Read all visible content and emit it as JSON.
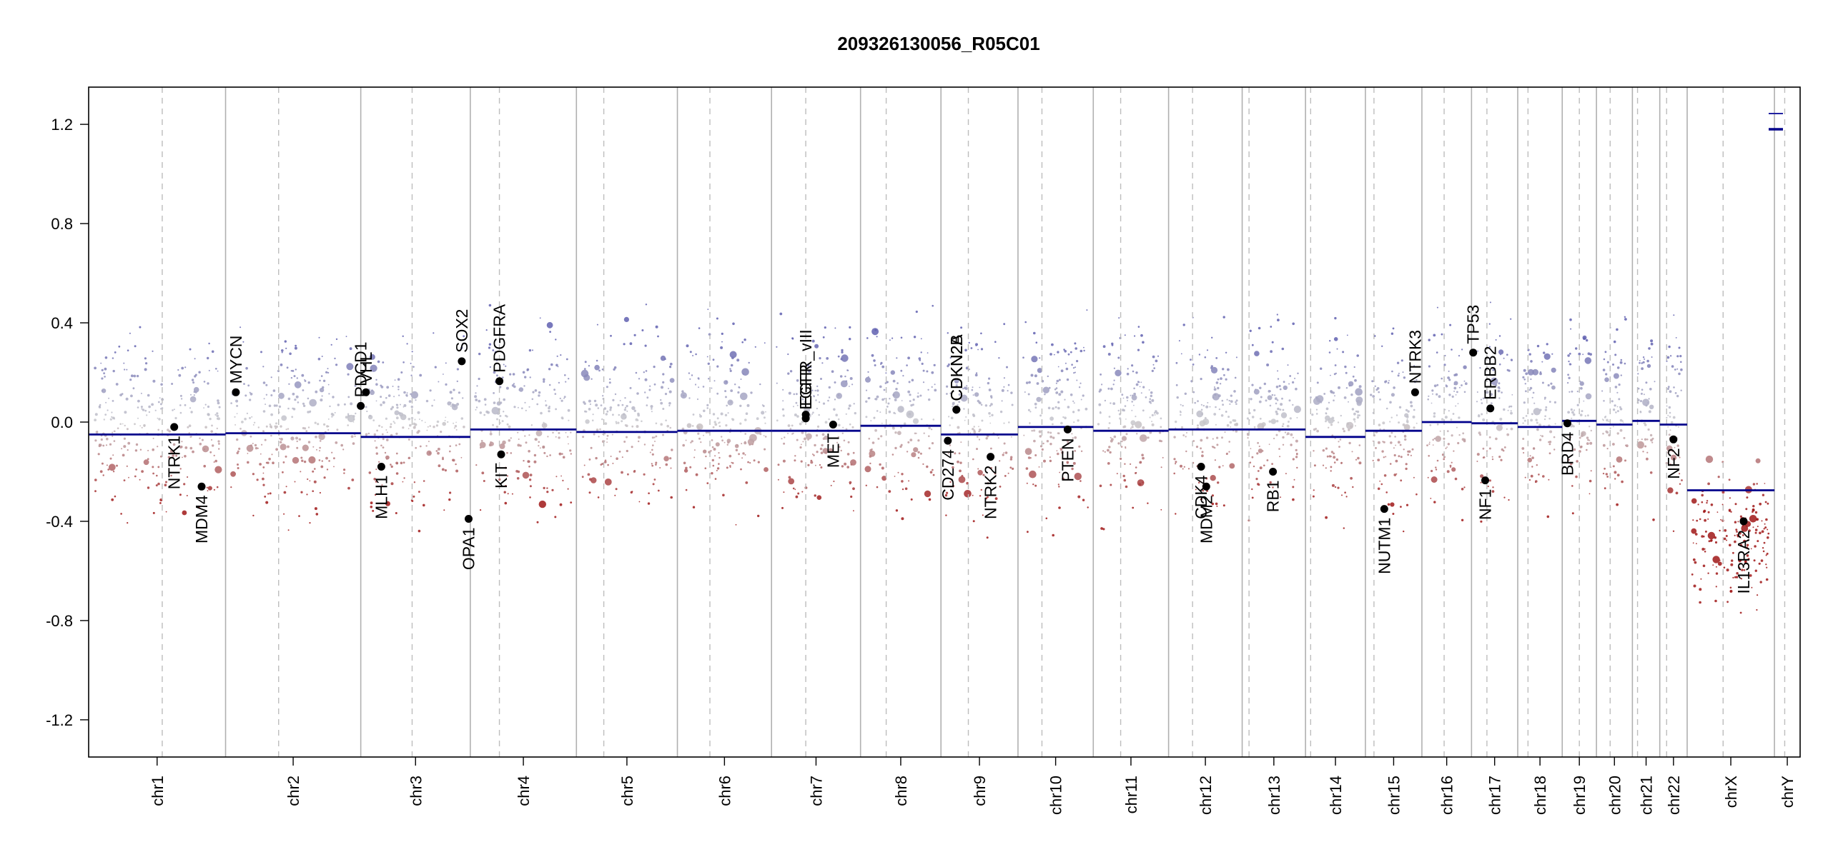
{
  "chart_data": {
    "type": "scatter",
    "title": "209326130056_R05C01",
    "xlabel": "",
    "ylabel": "",
    "ylim": [
      -1.35,
      1.35
    ],
    "yticks": [
      -1.2,
      -0.8,
      -0.4,
      0.0,
      0.4,
      0.8,
      1.2
    ],
    "ytick_labels": [
      "-1.2",
      "-0.8",
      "-0.4",
      "0.0",
      "0.4",
      "0.8",
      "1.2"
    ],
    "grid": false,
    "colors": {
      "gain": "#7070b8",
      "neutral": "#c8c8cc",
      "loss": "#a01818",
      "segment": "#00008b",
      "gene_point": "#000000"
    },
    "chromosomes": [
      {
        "name": "chr1",
        "start": 0.0,
        "end": 0.08,
        "segment": -0.05,
        "centromere": 0.043
      },
      {
        "name": "chr2",
        "start": 0.08,
        "end": 0.159,
        "segment": -0.045,
        "centromere": 0.111
      },
      {
        "name": "chr3",
        "start": 0.159,
        "end": 0.223,
        "segment": -0.06,
        "centromere": 0.189
      },
      {
        "name": "chr4",
        "start": 0.223,
        "end": 0.285,
        "segment": -0.03,
        "centromere": 0.24
      },
      {
        "name": "chr5",
        "start": 0.285,
        "end": 0.344,
        "segment": -0.04,
        "centromere": 0.301
      },
      {
        "name": "chr6",
        "start": 0.344,
        "end": 0.399,
        "segment": -0.035,
        "centromere": 0.363
      },
      {
        "name": "chr7",
        "start": 0.399,
        "end": 0.451,
        "segment": -0.035,
        "centromere": 0.419
      },
      {
        "name": "chr8",
        "start": 0.451,
        "end": 0.498,
        "segment": -0.015,
        "centromere": 0.466
      },
      {
        "name": "chr9",
        "start": 0.498,
        "end": 0.543,
        "segment": -0.05,
        "centromere": 0.514
      },
      {
        "name": "chr10",
        "start": 0.543,
        "end": 0.587,
        "segment": -0.02,
        "centromere": 0.557
      },
      {
        "name": "chr11",
        "start": 0.587,
        "end": 0.631,
        "segment": -0.035,
        "centromere": 0.603
      },
      {
        "name": "chr12",
        "start": 0.631,
        "end": 0.674,
        "segment": -0.03,
        "centromere": 0.645
      },
      {
        "name": "chr13",
        "start": 0.674,
        "end": 0.711,
        "segment": -0.03,
        "centromere": 0.678
      },
      {
        "name": "chr14",
        "start": 0.711,
        "end": 0.746,
        "segment": -0.06,
        "centromere": 0.714
      },
      {
        "name": "chr15",
        "start": 0.746,
        "end": 0.779,
        "segment": -0.035,
        "centromere": 0.751
      },
      {
        "name": "chr16",
        "start": 0.779,
        "end": 0.808,
        "segment": 0.0,
        "centromere": 0.792
      },
      {
        "name": "chr17",
        "start": 0.808,
        "end": 0.835,
        "segment": -0.005,
        "centromere": 0.817
      },
      {
        "name": "chr18",
        "start": 0.835,
        "end": 0.861,
        "segment": -0.02,
        "centromere": 0.841
      },
      {
        "name": "chr19",
        "start": 0.861,
        "end": 0.881,
        "segment": 0.005,
        "centromere": 0.871
      },
      {
        "name": "chr20",
        "start": 0.881,
        "end": 0.902,
        "segment": -0.01,
        "centromere": 0.889
      },
      {
        "name": "chr21",
        "start": 0.902,
        "end": 0.918,
        "segment": 0.005,
        "centromere": 0.905
      },
      {
        "name": "chr22",
        "start": 0.918,
        "end": 0.934,
        "segment": -0.01,
        "centromere": 0.922
      },
      {
        "name": "chrX",
        "start": 0.934,
        "end": 0.985,
        "segment": -0.275,
        "centromere": 0.955
      },
      {
        "name": "chrY",
        "start": 0.985,
        "end": 1.0,
        "segment": null,
        "centromere": 0.991
      }
    ],
    "genes": [
      {
        "name": "NTRK1",
        "x": 0.05,
        "value": -0.02
      },
      {
        "name": "MDM4",
        "x": 0.066,
        "value": -0.26
      },
      {
        "name": "MYCN",
        "x": 0.086,
        "value": 0.12
      },
      {
        "name": "PDCD1",
        "x": 0.159,
        "value": 0.065
      },
      {
        "name": "VHL",
        "x": 0.162,
        "value": 0.12
      },
      {
        "name": "MLH1",
        "x": 0.171,
        "value": -0.18
      },
      {
        "name": "SOX2",
        "x": 0.218,
        "value": 0.245
      },
      {
        "name": "OPA1",
        "x": 0.222,
        "value": -0.39
      },
      {
        "name": "PDGFRA",
        "x": 0.24,
        "value": 0.165
      },
      {
        "name": "KIT",
        "x": 0.241,
        "value": -0.13
      },
      {
        "name": "EGFR",
        "x": 0.419,
        "value": 0.015
      },
      {
        "name": "EGFR_vIII",
        "x": 0.419,
        "value": 0.03
      },
      {
        "name": "MET",
        "x": 0.435,
        "value": -0.01
      },
      {
        "name": "CD274",
        "x": 0.502,
        "value": -0.075
      },
      {
        "name": "CDKN2A",
        "x": 0.507,
        "value": 0.05
      },
      {
        "name": "CDKN2B",
        "x": 0.507,
        "value": 0.05
      },
      {
        "name": "NTRK2",
        "x": 0.527,
        "value": -0.14
      },
      {
        "name": "PTEN",
        "x": 0.572,
        "value": -0.03
      },
      {
        "name": "CDK4",
        "x": 0.65,
        "value": -0.18
      },
      {
        "name": "MDM2",
        "x": 0.653,
        "value": -0.26
      },
      {
        "name": "RB1",
        "x": 0.692,
        "value": -0.2
      },
      {
        "name": "NUTM1",
        "x": 0.757,
        "value": -0.35
      },
      {
        "name": "NTRK3",
        "x": 0.775,
        "value": 0.12
      },
      {
        "name": "TP53",
        "x": 0.809,
        "value": 0.28
      },
      {
        "name": "NF1",
        "x": 0.816,
        "value": -0.235
      },
      {
        "name": "ERBB2",
        "x": 0.819,
        "value": 0.055
      },
      {
        "name": "BRD4",
        "x": 0.864,
        "value": -0.005
      },
      {
        "name": "NF2",
        "x": 0.926,
        "value": -0.07
      },
      {
        "name": "IL13RA2",
        "x": 0.967,
        "value": -0.4
      }
    ]
  }
}
